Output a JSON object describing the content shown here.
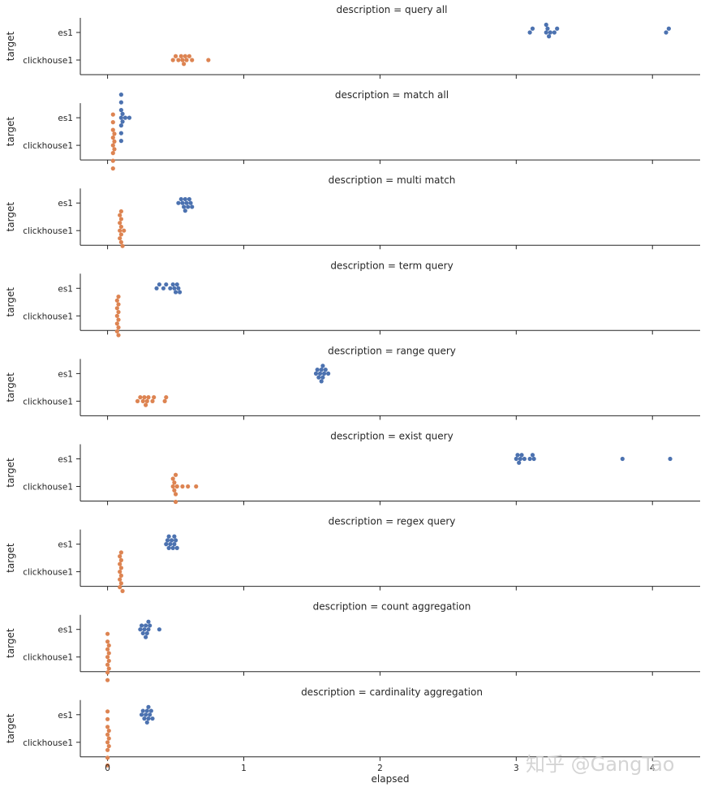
{
  "chart_data": {
    "type": "scatter",
    "subtype": "swarm",
    "xlabel": "elapsed",
    "ylabel": "target",
    "xlim": [
      -0.2,
      4.35
    ],
    "xticks": [
      0,
      1,
      2,
      3,
      4
    ],
    "categories": [
      "es1",
      "clickhouse1"
    ],
    "colors": {
      "es1": "#4c72b0",
      "clickhouse1": "#dd8452"
    },
    "title_prefix": "description = ",
    "panels": [
      {
        "description": "query all",
        "es1": [
          3.1,
          3.12,
          3.22,
          3.22,
          3.23,
          3.24,
          3.25,
          3.28,
          3.3,
          4.1,
          4.12
        ],
        "clickhouse1": [
          0.48,
          0.5,
          0.52,
          0.54,
          0.55,
          0.56,
          0.57,
          0.58,
          0.6,
          0.62,
          0.74
        ]
      },
      {
        "description": "match all",
        "es1": [
          0.1,
          0.1,
          0.1,
          0.1,
          0.1,
          0.1,
          0.1,
          0.11,
          0.11,
          0.13,
          0.16
        ],
        "clickhouse1": [
          0.04,
          0.04,
          0.04,
          0.04,
          0.04,
          0.04,
          0.04,
          0.04,
          0.05,
          0.05,
          0.05
        ]
      },
      {
        "description": "multi match",
        "es1": [
          0.52,
          0.54,
          0.55,
          0.56,
          0.57,
          0.57,
          0.58,
          0.59,
          0.6,
          0.61,
          0.62
        ],
        "clickhouse1": [
          0.09,
          0.09,
          0.09,
          0.09,
          0.1,
          0.1,
          0.1,
          0.1,
          0.1,
          0.11,
          0.12
        ]
      },
      {
        "description": "term query",
        "es1": [
          0.36,
          0.38,
          0.41,
          0.43,
          0.46,
          0.48,
          0.49,
          0.5,
          0.51,
          0.52,
          0.53
        ],
        "clickhouse1": [
          0.07,
          0.07,
          0.07,
          0.07,
          0.07,
          0.08,
          0.08,
          0.08,
          0.08,
          0.08,
          0.08
        ]
      },
      {
        "description": "range query",
        "es1": [
          1.53,
          1.54,
          1.55,
          1.56,
          1.57,
          1.57,
          1.58,
          1.58,
          1.59,
          1.6,
          1.62
        ],
        "clickhouse1": [
          0.22,
          0.24,
          0.26,
          0.27,
          0.28,
          0.29,
          0.3,
          0.33,
          0.34,
          0.42,
          0.43
        ]
      },
      {
        "description": "exist query",
        "es1": [
          3.0,
          3.01,
          3.02,
          3.03,
          3.04,
          3.06,
          3.1,
          3.12,
          3.13,
          3.78,
          4.13
        ],
        "clickhouse1": [
          0.48,
          0.48,
          0.49,
          0.49,
          0.5,
          0.5,
          0.5,
          0.51,
          0.55,
          0.59,
          0.65
        ]
      },
      {
        "description": "regex query",
        "es1": [
          0.43,
          0.44,
          0.45,
          0.45,
          0.46,
          0.47,
          0.48,
          0.49,
          0.49,
          0.5,
          0.51
        ],
        "clickhouse1": [
          0.09,
          0.09,
          0.09,
          0.09,
          0.09,
          0.1,
          0.1,
          0.1,
          0.1,
          0.1,
          0.11
        ]
      },
      {
        "description": "count aggregation",
        "es1": [
          0.24,
          0.25,
          0.26,
          0.27,
          0.28,
          0.28,
          0.29,
          0.3,
          0.3,
          0.31,
          0.38
        ],
        "clickhouse1": [
          0.0,
          0.0,
          0.0,
          0.0,
          0.0,
          0.0,
          0.0,
          0.01,
          0.01,
          0.01,
          0.01
        ]
      },
      {
        "description": "cardinality aggregation",
        "es1": [
          0.25,
          0.26,
          0.27,
          0.28,
          0.29,
          0.29,
          0.3,
          0.3,
          0.31,
          0.32,
          0.33
        ],
        "clickhouse1": [
          0.0,
          0.0,
          0.0,
          0.0,
          0.0,
          0.0,
          0.0,
          0.0,
          0.01,
          0.01,
          0.01
        ]
      }
    ]
  },
  "watermark": "知乎 @GangTao"
}
